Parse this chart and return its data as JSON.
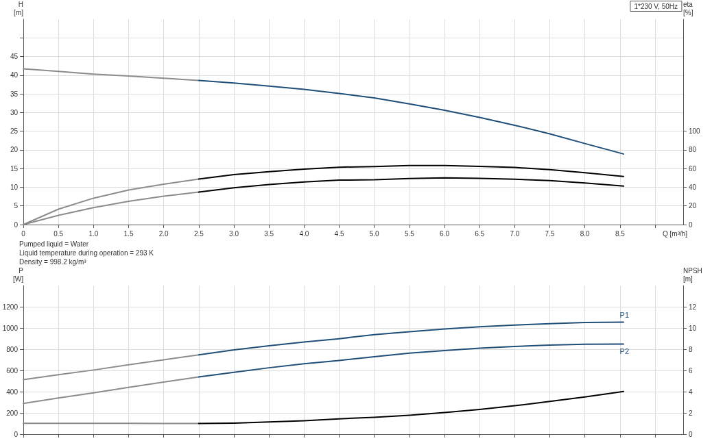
{
  "chart_data": [
    {
      "type": "line",
      "title": "1*230 V, 50Hz",
      "xlabel": "Q [m³/h]",
      "ylabel": "H [m]",
      "y2label": "eta [%]",
      "annotations": [
        "Pumped liquid = Water",
        "Liquid temperature during operation = 293 K",
        "Density = 998.2 kg/m³"
      ],
      "xlim": [
        0,
        9.4
      ],
      "xticks": [
        0,
        0.5,
        {
          "value": 1,
          "label": "1.0"
        },
        1.5,
        {
          "value": 2,
          "label": "2.0"
        },
        2.5,
        {
          "value": 3,
          "label": "3.0"
        },
        3.5,
        {
          "value": 4,
          "label": "4.0"
        },
        4.5,
        {
          "value": 5,
          "label": "5.0"
        },
        5.5,
        {
          "value": 6,
          "label": "6.0"
        },
        6.5,
        {
          "value": 7,
          "label": "7.0"
        },
        7.5,
        {
          "value": 8,
          "label": "8.0"
        },
        8.5,
        {
          "value": 9,
          "label": null
        }
      ],
      "ylim": [
        0,
        55
      ],
      "yticks": [
        0,
        5,
        10,
        15,
        20,
        25,
        30,
        35,
        40,
        45,
        {
          "value": 50,
          "label": null
        }
      ],
      "y2lim": [
        0,
        220
      ],
      "y2ticks": [
        0,
        20,
        40,
        60,
        80,
        100
      ],
      "grid": true,
      "line_style": "solid",
      "series": [
        {
          "color": "#8c8c8c",
          "x": [
            0,
            0.5,
            1,
            1.5,
            2,
            2.5
          ],
          "values": [
            41.7,
            41,
            40.3,
            39.8,
            39.2,
            38.6
          ]
        },
        {
          "color": "#1f4e79",
          "x": [
            2.5,
            3,
            3.5,
            4,
            4.5,
            5,
            5.5,
            6,
            6.5,
            7,
            7.5,
            8,
            8.55
          ],
          "values": [
            38.6,
            37.9,
            37.1,
            36.2,
            35.1,
            33.9,
            32.3,
            30.6,
            28.7,
            26.6,
            24.3,
            21.7,
            18.9
          ]
        },
        {
          "color": "#8c8c8c",
          "axis": "y2",
          "x": [
            0,
            0.5,
            1,
            1.5,
            2,
            2.5
          ],
          "values": [
            0,
            16.5,
            28.3,
            37,
            43.3,
            48.8
          ]
        },
        {
          "color": "#000000",
          "axis": "y2",
          "x": [
            2.5,
            3,
            3.5,
            4,
            4.5,
            5,
            5.5,
            6,
            6.5,
            7,
            7.5,
            8,
            8.55
          ],
          "values": [
            48.8,
            53.5,
            56.7,
            59.4,
            61.5,
            62.2,
            63.2,
            63.2,
            62.4,
            61.2,
            58.8,
            55.6,
            51.5
          ]
        },
        {
          "color": "#8c8c8c",
          "axis": "y2",
          "x": [
            0,
            0.5,
            1,
            1.5,
            2,
            2.5
          ],
          "values": [
            0,
            9.9,
            18.2,
            24.9,
            30.4,
            34.8
          ]
        },
        {
          "color": "#000000",
          "axis": "y2",
          "x": [
            2.5,
            3,
            3.5,
            4,
            4.5,
            5,
            5.5,
            6,
            6.5,
            7,
            7.5,
            8,
            8.55
          ],
          "values": [
            34.8,
            39.4,
            42.9,
            45.7,
            47.6,
            48,
            49.3,
            50,
            49.5,
            48.5,
            47.1,
            44.6,
            41.2
          ]
        }
      ]
    },
    {
      "type": "line",
      "ylabel": "P [W]",
      "y2label": "NPSH [m]",
      "tick_labels": "y",
      "xlim": [
        0,
        9.4
      ],
      "xticks": [
        0,
        0.5,
        1,
        1.5,
        2,
        2.5,
        3,
        3.5,
        4,
        4.5,
        5,
        5.5,
        6,
        6.5,
        7,
        7.5,
        8,
        8.5,
        9
      ],
      "ylim": [
        0,
        1400
      ],
      "yticks": [
        0,
        200,
        400,
        600,
        800,
        1000,
        1200
      ],
      "y2lim": [
        0,
        14
      ],
      "y2ticks": [
        0,
        2,
        4,
        6,
        8,
        10,
        12
      ],
      "grid": true,
      "line_style": "solid",
      "series": [
        {
          "color": "#8c8c8c",
          "x": [
            0,
            0.5,
            1,
            1.5,
            2,
            2.5
          ],
          "values": [
            513,
            559,
            604,
            653,
            700,
            747
          ]
        },
        {
          "name": "P1",
          "color": "#1f4e79",
          "x": [
            2.5,
            3,
            3.5,
            4,
            4.5,
            5,
            5.5,
            6,
            6.5,
            7,
            7.5,
            8,
            8.55
          ],
          "values": [
            747,
            794,
            832,
            867,
            899,
            937,
            964,
            990,
            1012,
            1028,
            1040,
            1051,
            1055
          ]
        },
        {
          "color": "#8c8c8c",
          "x": [
            0,
            0.5,
            1,
            1.5,
            2,
            2.5
          ],
          "values": [
            289,
            340,
            389,
            441,
            490,
            539
          ]
        },
        {
          "name": "P2",
          "color": "#1f4e79",
          "x": [
            2.5,
            3,
            3.5,
            4,
            4.5,
            5,
            5.5,
            6,
            6.5,
            7,
            7.5,
            8,
            8.55
          ],
          "values": [
            539,
            582,
            625,
            663,
            694,
            729,
            763,
            787,
            810,
            826,
            838,
            846,
            848
          ]
        },
        {
          "color": "#8c8c8c",
          "axis": "y2",
          "x": [
            0,
            0.5,
            1,
            1.5,
            2,
            2.5
          ],
          "values": [
            1.02,
            1.02,
            1.01,
            1.01,
            1,
            1
          ]
        },
        {
          "color": "#000000",
          "axis": "y2",
          "x": [
            2.5,
            3,
            3.5,
            4,
            4.5,
            5,
            5.5,
            6,
            6.5,
            7,
            7.5,
            8,
            8.55
          ],
          "values": [
            1,
            1.04,
            1.14,
            1.26,
            1.44,
            1.58,
            1.78,
            2.04,
            2.33,
            2.67,
            3.08,
            3.5,
            4.01
          ]
        }
      ]
    }
  ]
}
